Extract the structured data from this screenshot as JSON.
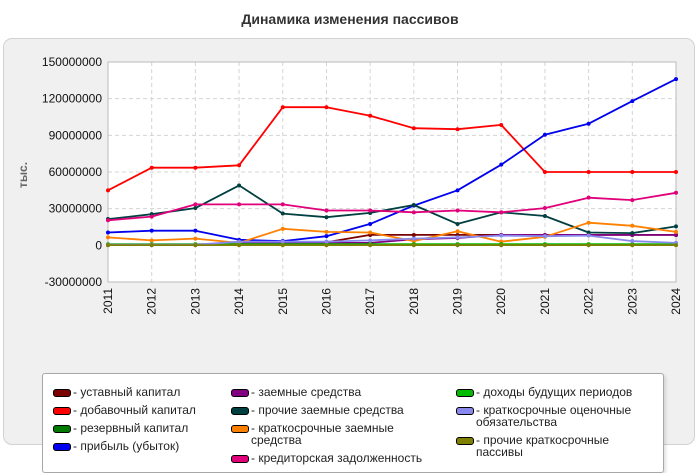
{
  "chart_data": {
    "type": "line",
    "title": "Динамика изменения пассивов",
    "ylabel": "тыс.",
    "xlabel": "",
    "x": [
      "2011",
      "2012",
      "2013",
      "2014",
      "2015",
      "2016",
      "2017",
      "2018",
      "2019",
      "2020",
      "2021",
      "2022",
      "2023",
      "2024"
    ],
    "ylim": [
      -30000000,
      150000000
    ],
    "yticks": [
      -30000000,
      0,
      30000000,
      60000000,
      90000000,
      120000000,
      150000000
    ],
    "ytick_labels": [
      "-30000000",
      "0",
      "30000000",
      "60000000",
      "90000000",
      "120000000",
      "150000000"
    ],
    "grid": true,
    "legend_position": "bottom",
    "series": [
      {
        "name": "- уставный капитал",
        "color": "#7a0000",
        "values": [
          500000,
          500000,
          500000,
          500000,
          2000000,
          2500000,
          8500000,
          8500000,
          8500000,
          8500000,
          8500000,
          8500000,
          8500000,
          8500000
        ]
      },
      {
        "name": "- добавочный капитал",
        "color": "#ff0000",
        "values": [
          45000000,
          63500000,
          63500000,
          65500000,
          113000000,
          113000000,
          106000000,
          95800000,
          95000000,
          98500000,
          60000000,
          60000000,
          60000000,
          60000000
        ]
      },
      {
        "name": "- резервный капитал",
        "color": "#007a00",
        "values": [
          300000,
          300000,
          300000,
          300000,
          300000,
          300000,
          300000,
          300000,
          300000,
          300000,
          300000,
          300000,
          300000,
          300000
        ]
      },
      {
        "name": "- прибыль (убыток)",
        "color": "#0000ee",
        "values": [
          10500000,
          12000000,
          12000000,
          4500000,
          3500000,
          7500000,
          17500000,
          32500000,
          45000000,
          66000000,
          90500000,
          99500000,
          118000000,
          136000000
        ]
      },
      {
        "name": "- заемные средства",
        "color": "#800080",
        "values": [
          200000,
          200000,
          200000,
          2000000,
          2000000,
          2000000,
          2000000,
          5000000,
          6000000,
          8500000,
          8500000,
          8500000,
          8500000,
          8500000
        ]
      },
      {
        "name": "- прочие заемные средства",
        "color": "#004040",
        "values": [
          21500000,
          25500000,
          30500000,
          49000000,
          26000000,
          23000000,
          26500000,
          33000000,
          17500000,
          27000000,
          24000000,
          10500000,
          10000000,
          15500000
        ]
      },
      {
        "name": "- краткосрочные заемные средства",
        "color": "#ff8000",
        "values": [
          6500000,
          4000000,
          5500000,
          2000000,
          13500000,
          11000000,
          10500000,
          3500000,
          11500000,
          3000000,
          7000000,
          18500000,
          16000000,
          11000000
        ]
      },
      {
        "name": "- кредиторская задолженность",
        "color": "#e0007a",
        "values": [
          20500000,
          23500000,
          33500000,
          33500000,
          33500000,
          28500000,
          28500000,
          27000000,
          28500000,
          27000000,
          30500000,
          39000000,
          37000000,
          43000000
        ]
      },
      {
        "name": "- доходы будущих периодов",
        "color": "#00bb00",
        "values": [
          1000000,
          1000000,
          1000000,
          1000000,
          1000000,
          1000000,
          1000000,
          1000000,
          1000000,
          1000000,
          1000000,
          1000000,
          1000000,
          1000000
        ]
      },
      {
        "name": "- краткосрочные оценочные обязательства",
        "color": "#8888ee",
        "values": [
          500000,
          500000,
          500000,
          3000000,
          3000000,
          3000000,
          4000000,
          5500000,
          6500000,
          8000000,
          7500000,
          8000000,
          3500000,
          2000000
        ]
      },
      {
        "name": "- прочие краткосрочные пассивы",
        "color": "#808000",
        "values": [
          200000,
          200000,
          200000,
          200000,
          200000,
          200000,
          200000,
          200000,
          200000,
          200000,
          200000,
          200000,
          200000,
          200000
        ]
      }
    ]
  }
}
